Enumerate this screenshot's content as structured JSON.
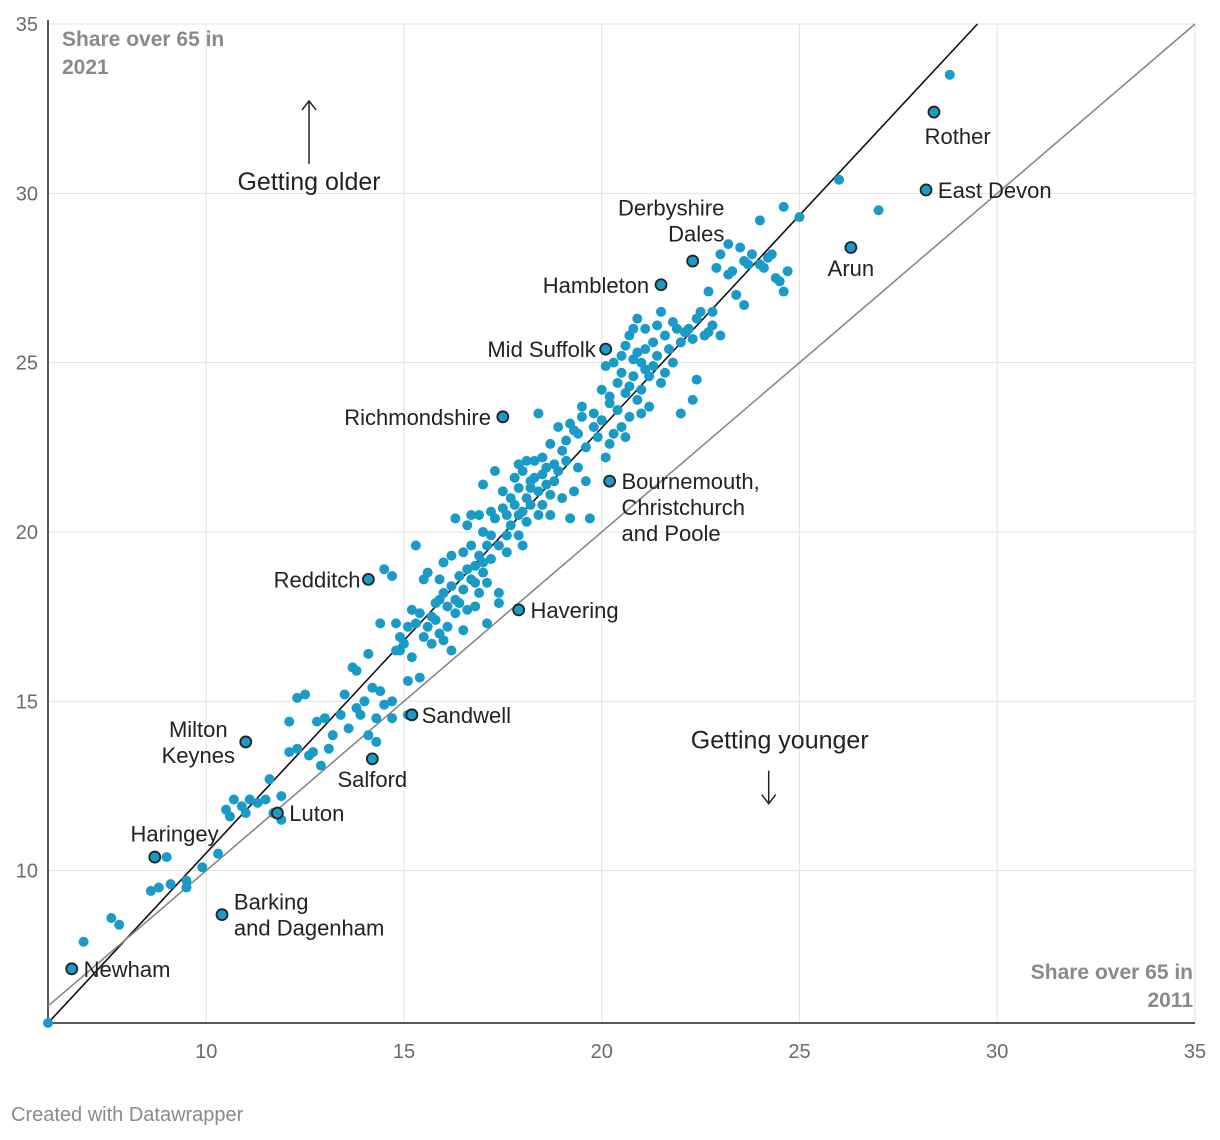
{
  "footer": "Created with Datawrapper",
  "chart_data": {
    "type": "scatter",
    "title": "",
    "xlabel": [
      "Share over 65 in",
      "2011"
    ],
    "ylabel": [
      "Share over 65 in",
      "2021"
    ],
    "xlim": [
      6,
      35
    ],
    "ylim": [
      5.5,
      35
    ],
    "xticks": [
      10,
      15,
      20,
      25,
      30,
      35
    ],
    "yticks": [
      10,
      15,
      20,
      25,
      30,
      35
    ],
    "grid": true,
    "colors": {
      "point": "#1a9ac7",
      "highlight": "#1a9ac7",
      "highlight_outline": "#222222",
      "trend_line": "#111111",
      "equality_line": "#888888"
    },
    "lines": [
      {
        "type": "trend",
        "from": [
          6,
          5.5
        ],
        "to": [
          29.5,
          35
        ]
      },
      {
        "type": "equality",
        "from": [
          6,
          6
        ],
        "to": [
          35,
          35
        ]
      }
    ],
    "annotations": [
      {
        "text": "Getting older",
        "x": 12.6,
        "y": 30.1,
        "arrow": "up"
      },
      {
        "text": "Getting younger",
        "x": 24.5,
        "y": 13.6,
        "arrow": "down"
      }
    ],
    "highlighted": [
      {
        "name": [
          "Rother"
        ],
        "x": 28.4,
        "y": 32.4,
        "label_x": 29.0,
        "label_y": 31.7,
        "anchor": "middle"
      },
      {
        "name": [
          "East Devon"
        ],
        "x": 28.2,
        "y": 30.1,
        "label_x": 28.5,
        "label_y": 30.1,
        "anchor": "start"
      },
      {
        "name": [
          "Derbyshire",
          "Dales"
        ],
        "x": 22.3,
        "y": 28.0,
        "label_x": 23.1,
        "label_y": 29.2,
        "anchor": "end"
      },
      {
        "name": [
          "Arun"
        ],
        "x": 26.3,
        "y": 28.4,
        "label_x": 26.3,
        "label_y": 27.8,
        "anchor": "middle"
      },
      {
        "name": [
          "Hambleton"
        ],
        "x": 21.5,
        "y": 27.3,
        "label_x": 21.2,
        "label_y": 27.3,
        "anchor": "end"
      },
      {
        "name": [
          "Mid Suffolk"
        ],
        "x": 20.1,
        "y": 25.4,
        "label_x": 19.85,
        "label_y": 25.4,
        "anchor": "end"
      },
      {
        "name": [
          "Richmondshire"
        ],
        "x": 17.5,
        "y": 23.4,
        "label_x": 17.2,
        "label_y": 23.4,
        "anchor": "end"
      },
      {
        "name": [
          "Bournemouth,",
          "Christchurch",
          "and Poole"
        ],
        "x": 20.2,
        "y": 21.5,
        "label_x": 20.5,
        "label_y": 21.5,
        "anchor": "start"
      },
      {
        "name": [
          "Redditch"
        ],
        "x": 14.1,
        "y": 18.6,
        "label_x": 13.9,
        "label_y": 18.6,
        "anchor": "end"
      },
      {
        "name": [
          "Havering"
        ],
        "x": 17.9,
        "y": 17.7,
        "label_x": 18.2,
        "label_y": 17.7,
        "anchor": "start"
      },
      {
        "name": [
          "Sandwell"
        ],
        "x": 15.2,
        "y": 14.6,
        "label_x": 15.45,
        "label_y": 14.6,
        "anchor": "start"
      },
      {
        "name": [
          "Milton",
          "Keynes"
        ],
        "x": 11.0,
        "y": 13.8,
        "label_x": 9.8,
        "label_y": 13.8,
        "anchor": "middle"
      },
      {
        "name": [
          "Salford"
        ],
        "x": 14.2,
        "y": 13.3,
        "label_x": 14.2,
        "label_y": 12.7,
        "anchor": "middle"
      },
      {
        "name": [
          "Luton"
        ],
        "x": 11.8,
        "y": 11.7,
        "label_x": 12.1,
        "label_y": 11.7,
        "anchor": "start"
      },
      {
        "name": [
          "Haringey"
        ],
        "x": 8.7,
        "y": 10.4,
        "label_x": 9.2,
        "label_y": 11.1,
        "anchor": "middle"
      },
      {
        "name": [
          "Barking",
          "and Dagenham"
        ],
        "x": 10.4,
        "y": 8.7,
        "label_x": 10.7,
        "label_y": 8.7,
        "anchor": "start"
      },
      {
        "name": [
          "Newham"
        ],
        "x": 6.6,
        "y": 7.1,
        "label_x": 6.9,
        "label_y": 7.1,
        "anchor": "start"
      }
    ],
    "points": [
      [
        6.0,
        5.5
      ],
      [
        6.9,
        7.9
      ],
      [
        7.6,
        8.6
      ],
      [
        7.8,
        8.4
      ],
      [
        8.6,
        9.4
      ],
      [
        8.8,
        9.5
      ],
      [
        9.0,
        10.4
      ],
      [
        9.1,
        9.6
      ],
      [
        9.5,
        9.7
      ],
      [
        9.5,
        9.5
      ],
      [
        9.9,
        10.1
      ],
      [
        10.3,
        10.5
      ],
      [
        10.5,
        11.8
      ],
      [
        10.6,
        11.6
      ],
      [
        10.7,
        12.1
      ],
      [
        10.9,
        11.9
      ],
      [
        11.0,
        11.7
      ],
      [
        11.1,
        12.1
      ],
      [
        11.3,
        12.0
      ],
      [
        11.5,
        12.1
      ],
      [
        11.6,
        12.7
      ],
      [
        11.7,
        11.7
      ],
      [
        11.9,
        11.5
      ],
      [
        11.9,
        12.2
      ],
      [
        12.1,
        13.5
      ],
      [
        12.1,
        14.4
      ],
      [
        12.3,
        13.6
      ],
      [
        12.3,
        15.1
      ],
      [
        12.5,
        15.2
      ],
      [
        12.6,
        13.4
      ],
      [
        12.7,
        13.5
      ],
      [
        12.8,
        14.4
      ],
      [
        12.9,
        13.1
      ],
      [
        13.0,
        14.5
      ],
      [
        13.1,
        13.6
      ],
      [
        13.2,
        14.0
      ],
      [
        13.4,
        14.6
      ],
      [
        13.5,
        15.2
      ],
      [
        13.6,
        14.2
      ],
      [
        13.7,
        16.0
      ],
      [
        13.8,
        15.9
      ],
      [
        13.8,
        14.8
      ],
      [
        13.9,
        14.6
      ],
      [
        14.0,
        15.0
      ],
      [
        14.1,
        16.4
      ],
      [
        14.1,
        14.0
      ],
      [
        14.2,
        15.4
      ],
      [
        14.3,
        14.5
      ],
      [
        14.3,
        13.8
      ],
      [
        14.4,
        17.3
      ],
      [
        14.4,
        15.3
      ],
      [
        14.5,
        14.9
      ],
      [
        14.5,
        18.9
      ],
      [
        14.7,
        15.0
      ],
      [
        14.7,
        14.5
      ],
      [
        14.8,
        16.5
      ],
      [
        14.8,
        17.3
      ],
      [
        14.7,
        18.7
      ],
      [
        14.9,
        16.9
      ],
      [
        14.9,
        16.5
      ],
      [
        15.0,
        16.7
      ],
      [
        15.1,
        14.6
      ],
      [
        15.1,
        17.2
      ],
      [
        15.1,
        15.6
      ],
      [
        15.2,
        16.3
      ],
      [
        15.2,
        17.7
      ],
      [
        15.3,
        17.3
      ],
      [
        15.3,
        19.6
      ],
      [
        15.4,
        15.7
      ],
      [
        15.4,
        17.6
      ],
      [
        15.5,
        16.9
      ],
      [
        15.5,
        18.6
      ],
      [
        15.6,
        17.2
      ],
      [
        15.6,
        18.8
      ],
      [
        15.7,
        17.5
      ],
      [
        15.7,
        16.7
      ],
      [
        15.8,
        17.9
      ],
      [
        15.8,
        17.4
      ],
      [
        15.9,
        18.0
      ],
      [
        15.9,
        18.6
      ],
      [
        15.9,
        17.0
      ],
      [
        16.0,
        19.1
      ],
      [
        16.0,
        18.2
      ],
      [
        16.0,
        16.8
      ],
      [
        16.1,
        17.8
      ],
      [
        16.1,
        17.2
      ],
      [
        16.2,
        18.4
      ],
      [
        16.2,
        19.3
      ],
      [
        16.2,
        16.5
      ],
      [
        16.3,
        18.0
      ],
      [
        16.3,
        20.4
      ],
      [
        16.3,
        17.6
      ],
      [
        16.4,
        17.9
      ],
      [
        16.4,
        18.7
      ],
      [
        16.5,
        17.1
      ],
      [
        16.5,
        19.4
      ],
      [
        16.5,
        18.3
      ],
      [
        16.6,
        18.9
      ],
      [
        16.6,
        17.7
      ],
      [
        16.6,
        20.2
      ],
      [
        16.7,
        18.6
      ],
      [
        16.7,
        19.6
      ],
      [
        16.7,
        20.5
      ],
      [
        16.8,
        18.5
      ],
      [
        16.8,
        19.0
      ],
      [
        16.8,
        17.8
      ],
      [
        16.9,
        19.3
      ],
      [
        16.9,
        20.5
      ],
      [
        16.9,
        18.2
      ],
      [
        17.0,
        19.1
      ],
      [
        17.0,
        21.4
      ],
      [
        17.0,
        20.0
      ],
      [
        17.0,
        18.8
      ],
      [
        17.1,
        19.6
      ],
      [
        17.1,
        18.5
      ],
      [
        17.1,
        17.3
      ],
      [
        17.2,
        19.9
      ],
      [
        17.2,
        20.6
      ],
      [
        17.2,
        19.2
      ],
      [
        17.3,
        21.8
      ],
      [
        17.3,
        20.4
      ],
      [
        17.4,
        19.6
      ],
      [
        17.4,
        18.2
      ],
      [
        17.4,
        17.9
      ],
      [
        17.5,
        20.7
      ],
      [
        17.5,
        21.2
      ],
      [
        17.6,
        19.9
      ],
      [
        17.6,
        20.5
      ],
      [
        17.6,
        19.4
      ],
      [
        17.7,
        21.0
      ],
      [
        17.7,
        20.2
      ],
      [
        17.8,
        21.6
      ],
      [
        17.8,
        20.8
      ],
      [
        17.9,
        19.9
      ],
      [
        17.9,
        21.3
      ],
      [
        17.9,
        22.0
      ],
      [
        17.9,
        20.5
      ],
      [
        18.0,
        20.6
      ],
      [
        18.0,
        21.8
      ],
      [
        18.0,
        19.6
      ],
      [
        18.1,
        21.0
      ],
      [
        18.1,
        20.3
      ],
      [
        18.1,
        22.1
      ],
      [
        18.2,
        21.3
      ],
      [
        18.2,
        21.5
      ],
      [
        18.2,
        20.8
      ],
      [
        18.3,
        22.1
      ],
      [
        18.3,
        21.6
      ],
      [
        18.4,
        23.5
      ],
      [
        18.4,
        21.2
      ],
      [
        18.4,
        20.5
      ],
      [
        18.5,
        22.2
      ],
      [
        18.5,
        21.7
      ],
      [
        18.5,
        20.8
      ],
      [
        18.6,
        21.9
      ],
      [
        18.6,
        21.4
      ],
      [
        18.7,
        22.6
      ],
      [
        18.7,
        21.1
      ],
      [
        18.7,
        20.5
      ],
      [
        18.8,
        22.0
      ],
      [
        18.8,
        21.5
      ],
      [
        18.9,
        21.8
      ],
      [
        18.9,
        23.1
      ],
      [
        19.0,
        22.4
      ],
      [
        19.0,
        21.0
      ],
      [
        19.1,
        22.7
      ],
      [
        19.1,
        22.1
      ],
      [
        19.2,
        23.2
      ],
      [
        19.2,
        20.4
      ],
      [
        19.3,
        23.0
      ],
      [
        19.3,
        21.2
      ],
      [
        19.4,
        22.9
      ],
      [
        19.4,
        21.9
      ],
      [
        19.5,
        23.4
      ],
      [
        19.5,
        23.7
      ],
      [
        19.6,
        22.5
      ],
      [
        19.6,
        21.5
      ],
      [
        19.7,
        20.4
      ],
      [
        19.8,
        23.5
      ],
      [
        19.8,
        23.1
      ],
      [
        19.9,
        22.8
      ],
      [
        20.0,
        23.3
      ],
      [
        20.0,
        24.2
      ],
      [
        20.1,
        24.9
      ],
      [
        20.1,
        22.2
      ],
      [
        20.2,
        24.0
      ],
      [
        20.2,
        22.6
      ],
      [
        20.2,
        23.8
      ],
      [
        20.3,
        25.0
      ],
      [
        20.3,
        22.9
      ],
      [
        20.4,
        24.4
      ],
      [
        20.4,
        23.6
      ],
      [
        20.5,
        25.2
      ],
      [
        20.5,
        24.7
      ],
      [
        20.5,
        23.1
      ],
      [
        20.6,
        25.5
      ],
      [
        20.6,
        24.1
      ],
      [
        20.6,
        22.8
      ],
      [
        20.7,
        25.8
      ],
      [
        20.7,
        24.3
      ],
      [
        20.7,
        23.4
      ],
      [
        20.8,
        26.0
      ],
      [
        20.8,
        25.1
      ],
      [
        20.8,
        24.6
      ],
      [
        20.9,
        26.3
      ],
      [
        20.9,
        25.3
      ],
      [
        20.9,
        23.9
      ],
      [
        21.0,
        25.0
      ],
      [
        21.0,
        24.2
      ],
      [
        21.0,
        23.5
      ],
      [
        21.1,
        26.0
      ],
      [
        21.1,
        25.4
      ],
      [
        21.1,
        24.8
      ],
      [
        21.2,
        24.6
      ],
      [
        21.2,
        23.7
      ],
      [
        21.3,
        25.6
      ],
      [
        21.3,
        24.9
      ],
      [
        21.4,
        26.1
      ],
      [
        21.4,
        25.2
      ],
      [
        21.5,
        24.4
      ],
      [
        21.5,
        26.5
      ],
      [
        21.6,
        25.8
      ],
      [
        21.6,
        24.7
      ],
      [
        21.7,
        25.4
      ],
      [
        21.8,
        26.2
      ],
      [
        21.8,
        25.0
      ],
      [
        21.9,
        26.0
      ],
      [
        22.0,
        25.6
      ],
      [
        22.0,
        23.5
      ],
      [
        22.1,
        25.9
      ],
      [
        22.2,
        26.0
      ],
      [
        22.3,
        25.7
      ],
      [
        22.3,
        23.9
      ],
      [
        22.4,
        26.3
      ],
      [
        22.4,
        24.5
      ],
      [
        22.5,
        26.5
      ],
      [
        22.6,
        25.8
      ],
      [
        22.7,
        27.1
      ],
      [
        22.7,
        25.9
      ],
      [
        22.8,
        26.1
      ],
      [
        22.8,
        26.5
      ],
      [
        22.9,
        27.8
      ],
      [
        23.0,
        28.2
      ],
      [
        23.0,
        25.8
      ],
      [
        23.2,
        28.5
      ],
      [
        23.2,
        27.6
      ],
      [
        23.3,
        27.7
      ],
      [
        23.4,
        27.0
      ],
      [
        23.5,
        28.4
      ],
      [
        23.6,
        28.0
      ],
      [
        23.6,
        26.7
      ],
      [
        23.7,
        27.9
      ],
      [
        23.8,
        28.2
      ],
      [
        24.0,
        29.2
      ],
      [
        24.0,
        27.9
      ],
      [
        24.1,
        27.8
      ],
      [
        24.2,
        28.1
      ],
      [
        24.3,
        28.2
      ],
      [
        24.4,
        27.5
      ],
      [
        24.5,
        27.4
      ],
      [
        24.6,
        27.1
      ],
      [
        24.6,
        29.6
      ],
      [
        24.7,
        27.7
      ],
      [
        25.0,
        29.3
      ],
      [
        26.0,
        30.4
      ],
      [
        27.0,
        29.5
      ],
      [
        28.8,
        33.5
      ]
    ]
  }
}
